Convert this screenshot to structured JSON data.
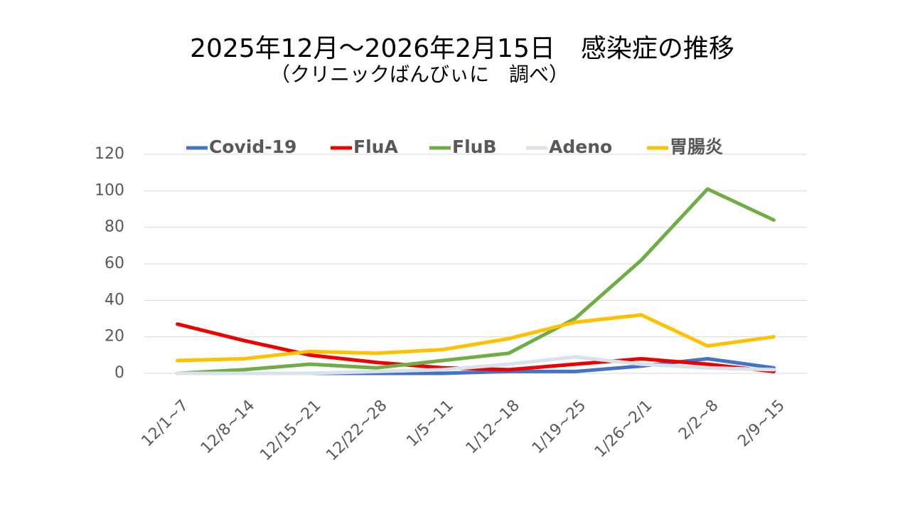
{
  "chart_data": {
    "type": "line",
    "title": "2025年12月～2026年2月15日　感染症の推移",
    "subtitle": "（クリニックばんびぃに　調べ）",
    "categories": [
      "12/1~7",
      "12/8~14",
      "12/15~21",
      "12/22~28",
      "1/5~11",
      "1/12~18",
      "1/19~25",
      "1/26~2/1",
      "2/2~8",
      "2/9~15"
    ],
    "series": [
      {
        "name": "Covid-19",
        "color": "#4472c4",
        "values": [
          0,
          0,
          0,
          0,
          0,
          1,
          1,
          4,
          8,
          3
        ]
      },
      {
        "name": "FluA",
        "color": "#ee0000",
        "values": [
          27,
          18,
          10,
          6,
          3,
          2,
          5,
          8,
          5,
          1
        ]
      },
      {
        "name": "FluB",
        "color": "#70ad47",
        "values": [
          0,
          2,
          5,
          3,
          7,
          11,
          30,
          62,
          101,
          84
        ]
      },
      {
        "name": "Adeno",
        "color": "#d9e1ea",
        "values": [
          0,
          0,
          0,
          1,
          2,
          5,
          9,
          5,
          3,
          2
        ]
      },
      {
        "name": "胃腸炎",
        "color": "#ffc000",
        "values": [
          7,
          8,
          12,
          11,
          13,
          19,
          28,
          32,
          15,
          20
        ]
      }
    ],
    "ylim": [
      0,
      120
    ],
    "yticks": [
      0,
      20,
      40,
      60,
      80,
      100,
      120
    ],
    "grid": true,
    "legend": "top"
  }
}
